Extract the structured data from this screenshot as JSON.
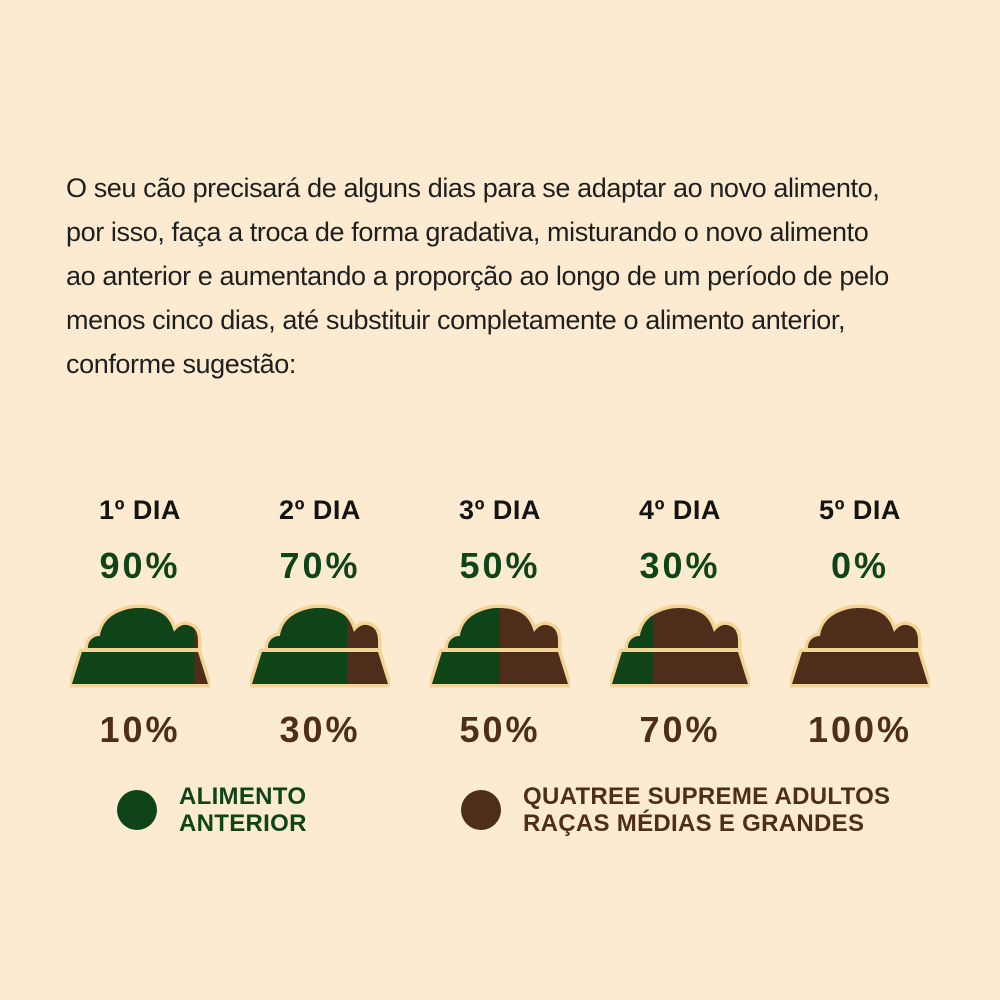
{
  "intro": {
    "lines": [
      "O seu cão precisará de alguns dias para se adaptar ao novo alimento,",
      "por isso, faça a troca de forma gradativa, misturando o novo alimento",
      "ao anterior e aumentando a proporção ao longo de um período de pelo",
      "menos cinco dias, até substituir completamente o alimento anterior,",
      "conforme sugestão:"
    ]
  },
  "colors": {
    "previous_food": "#0f4419",
    "new_food": "#4e2e1b",
    "bowl_outline": "#f3d494",
    "background": "#fcebd1"
  },
  "days": [
    {
      "label": "1º DIA",
      "previous_pct": "90%",
      "new_pct": "10%",
      "previous_fraction": 0.9
    },
    {
      "label": "2º DIA",
      "previous_pct": "70%",
      "new_pct": "30%",
      "previous_fraction": 0.7
    },
    {
      "label": "3º DIA",
      "previous_pct": "50%",
      "new_pct": "50%",
      "previous_fraction": 0.5
    },
    {
      "label": "4º DIA",
      "previous_pct": "30%",
      "new_pct": "70%",
      "previous_fraction": 0.3
    },
    {
      "label": "5º DIA",
      "previous_pct": "0%",
      "new_pct": "100%",
      "previous_fraction": 0.0
    }
  ],
  "legend": {
    "previous": {
      "lines": [
        "ALIMENTO",
        "ANTERIOR"
      ],
      "icon": "green-dot-icon"
    },
    "new": {
      "lines": [
        "QUATREE SUPREME ADULTOS",
        "RAÇAS MÉDIAS E GRANDES"
      ],
      "icon": "brown-dot-icon"
    }
  }
}
